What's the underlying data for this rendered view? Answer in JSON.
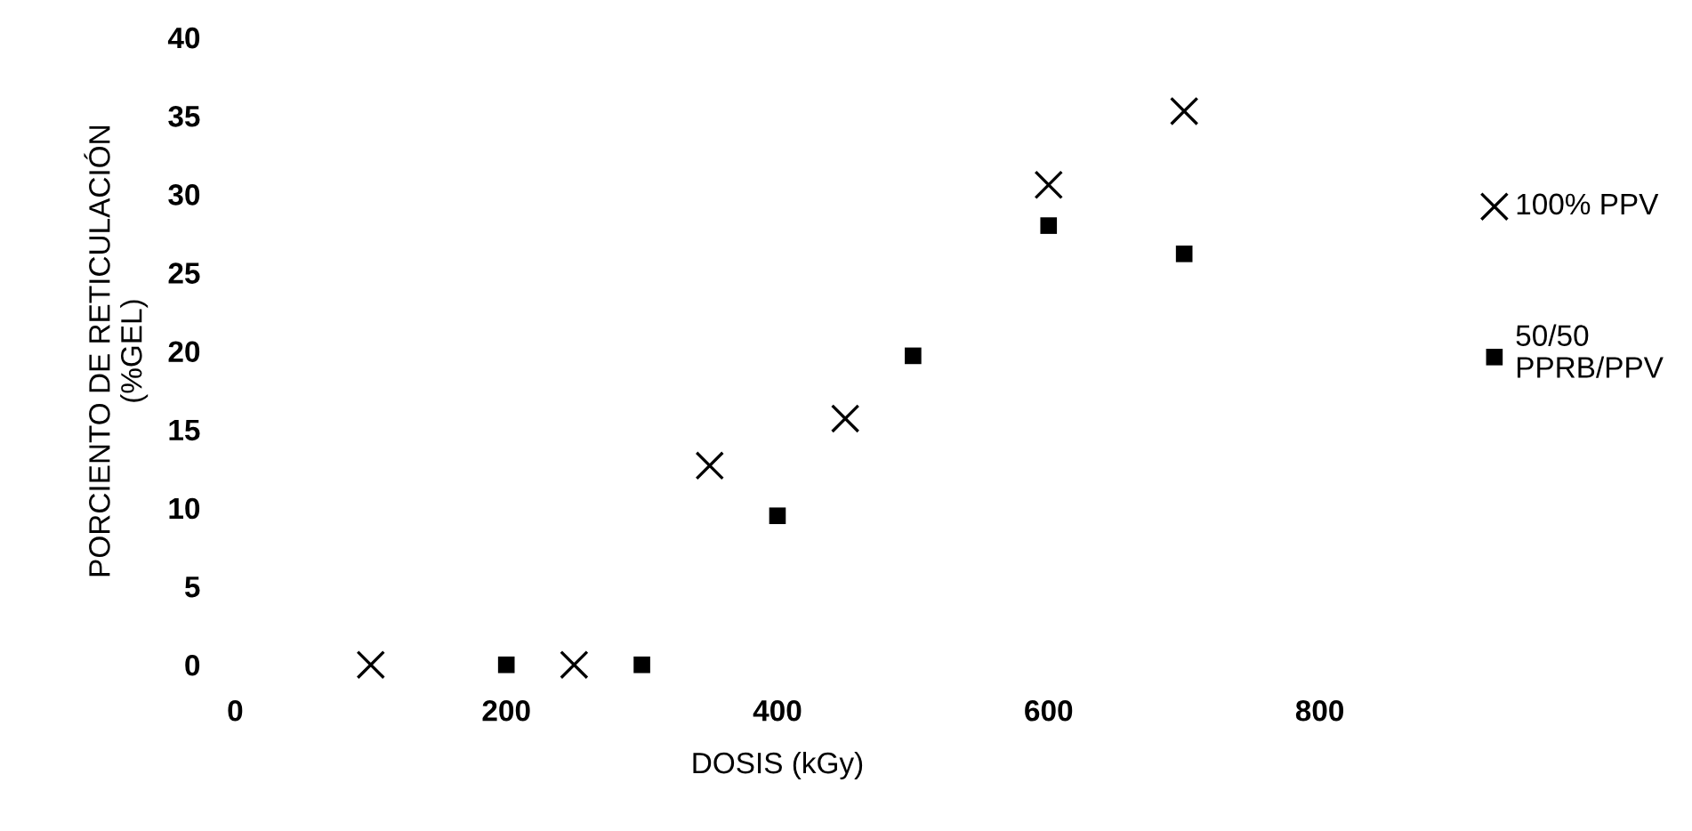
{
  "chart_data": {
    "type": "scatter",
    "xlabel": "DOSIS (kGy)",
    "ylabel": "PORCIENTO DE RETICULACIÓN\n(%GEL)",
    "xlim": [
      0,
      800
    ],
    "ylim": [
      0,
      40
    ],
    "xticks": [
      0,
      200,
      400,
      600,
      800
    ],
    "yticks": [
      0,
      5,
      10,
      15,
      20,
      25,
      30,
      35,
      40
    ],
    "grid": false,
    "legend": "right",
    "series": [
      {
        "name": "100% PPV",
        "color": "#000000",
        "marker": "cross",
        "x": [
          100,
          250,
          350,
          450,
          600,
          700
        ],
        "values": [
          0,
          0,
          12.7,
          15.7,
          30.6,
          35.3
        ]
      },
      {
        "name": "50/50\nPPRB/PPV",
        "color": "#000000",
        "marker": "square",
        "x": [
          200,
          300,
          400,
          500,
          600,
          700
        ],
        "values": [
          0,
          0,
          9.5,
          19.7,
          28,
          26.2
        ]
      }
    ]
  }
}
